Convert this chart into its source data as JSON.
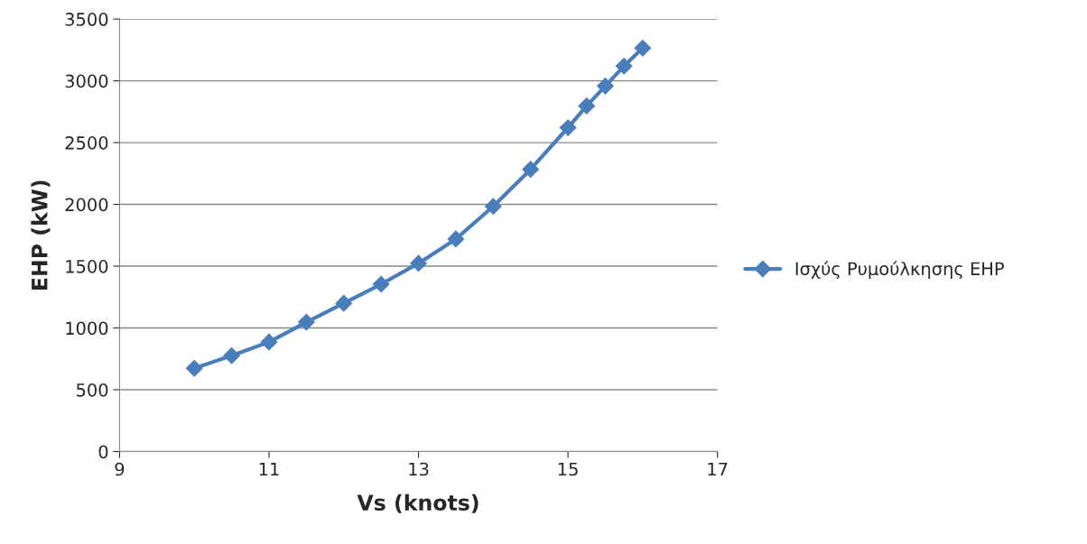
{
  "chart_data": {
    "type": "line",
    "xlabel": "Vs (knots)",
    "ylabel": "EHP (kW)",
    "x": [
      10,
      10.5,
      11,
      11.5,
      12,
      12.5,
      13,
      13.5,
      14,
      14.5,
      15,
      15.25,
      15.5,
      15.75,
      16
    ],
    "series": [
      {
        "name": "Ισχύς Ρυμούλκησης EHP",
        "color": "#4a7ebb",
        "values": [
          673,
          776,
          886,
          1047,
          1200,
          1354,
          1523,
          1720,
          1984,
          2284,
          2621,
          2797,
          2958,
          3119,
          3265
        ]
      }
    ],
    "xlim": [
      9,
      17
    ],
    "xticks": [
      9,
      11,
      13,
      15,
      17
    ],
    "ylim": [
      0,
      3500
    ],
    "yticks": [
      0,
      500,
      1000,
      1500,
      2000,
      2500,
      3000,
      3500
    ],
    "grid": "y",
    "legend": "right",
    "marker": "diamond",
    "line_style": "solid"
  }
}
